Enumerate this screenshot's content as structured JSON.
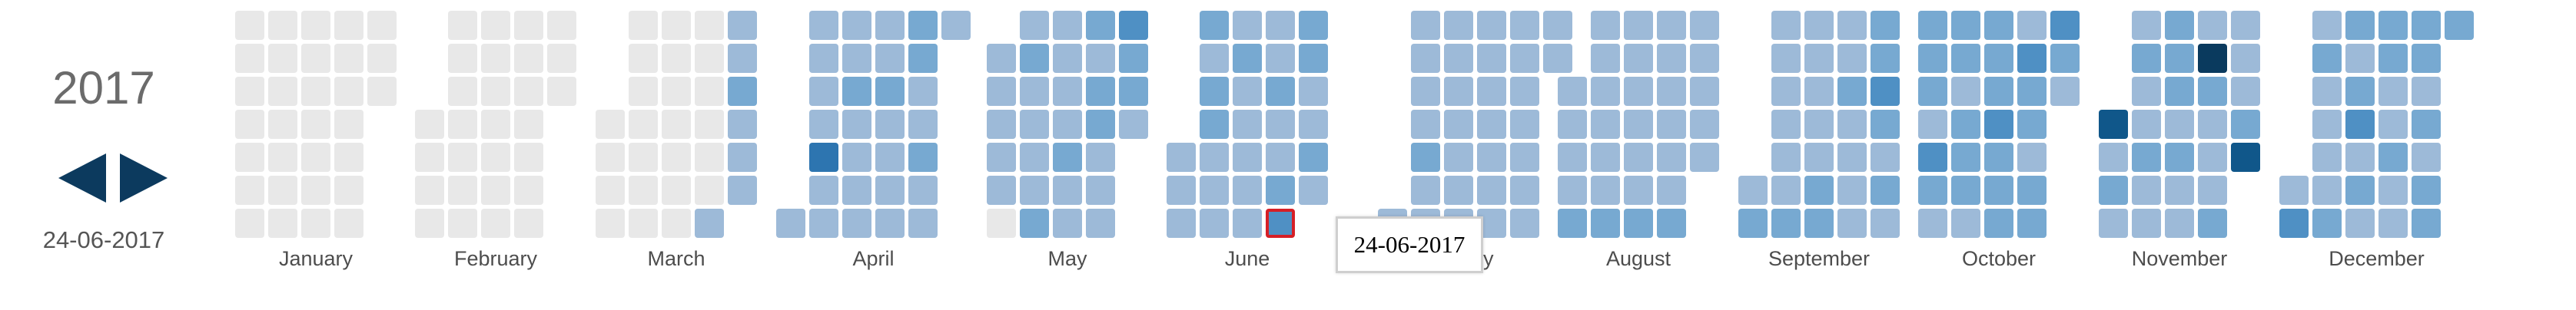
{
  "header": {
    "year": "2017",
    "selected_date": "24-06-2017"
  },
  "nav": {
    "prev_icon": "triangle-left-icon",
    "next_icon": "triangle-right-icon"
  },
  "tooltip": {
    "text": "24-06-2017"
  },
  "palette": {
    "empty": "#e8e8e8",
    "levels": [
      "#9dbad8",
      "#77a9d1",
      "#4f90c4",
      "#2d75b0",
      "#10578a",
      "#0a3a5e"
    ],
    "selected_border": "#d61f26"
  },
  "months": [
    {
      "name": "January",
      "first_dow": 0,
      "days": 31,
      "counts": []
    },
    {
      "name": "February",
      "first_dow": 3,
      "days": 28,
      "counts": []
    },
    {
      "name": "March",
      "first_dow": 3,
      "days": 31,
      "counts": [
        0,
        0,
        0,
        0,
        0,
        0,
        0,
        0,
        0,
        0,
        0,
        0,
        0,
        0,
        0,
        0,
        0,
        0,
        0,
        0,
        0,
        0,
        0,
        0,
        1,
        1,
        1,
        2,
        1,
        1,
        1
      ]
    },
    {
      "name": "April",
      "first_dow": 6,
      "days": 30,
      "counts": [
        1,
        1,
        1,
        1,
        1,
        4,
        1,
        1,
        1,
        1,
        2,
        1,
        1,
        1,
        1,
        1,
        1,
        2,
        1,
        1,
        1,
        1,
        2,
        2,
        1,
        1,
        2,
        1,
        1,
        1
      ]
    },
    {
      "name": "May",
      "first_dow": 1,
      "days": 31,
      "counts": [
        1,
        1,
        1,
        1,
        1,
        0,
        1,
        2,
        1,
        1,
        1,
        1,
        2,
        1,
        1,
        1,
        1,
        2,
        1,
        1,
        2,
        1,
        2,
        2,
        1,
        1,
        1,
        3,
        2,
        2,
        1
      ]
    },
    {
      "name": "June",
      "first_dow": 4,
      "days": 30,
      "counts": [
        1,
        1,
        1,
        2,
        1,
        2,
        2,
        1,
        1,
        1,
        1,
        2,
        1,
        1,
        1,
        1,
        1,
        1,
        1,
        2,
        1,
        1,
        2,
        3,
        2,
        2,
        1,
        1,
        2,
        1
      ]
    },
    {
      "name": "July",
      "first_dow": 6,
      "days": 31,
      "counts": [
        1,
        1,
        1,
        1,
        1,
        2,
        1,
        1,
        1,
        1,
        1,
        1,
        1,
        1,
        1,
        1,
        1,
        1,
        1,
        1,
        1,
        1,
        1,
        1,
        1,
        1,
        1,
        1,
        1,
        1,
        1
      ]
    },
    {
      "name": "August",
      "first_dow": 2,
      "days": 31,
      "counts": [
        1,
        1,
        1,
        1,
        2,
        1,
        1,
        1,
        1,
        1,
        1,
        2,
        1,
        1,
        1,
        1,
        1,
        1,
        2,
        1,
        1,
        1,
        1,
        1,
        1,
        2,
        1,
        1,
        1,
        1,
        1
      ]
    },
    {
      "name": "September",
      "first_dow": 5,
      "days": 30,
      "counts": [
        1,
        2,
        1,
        1,
        1,
        1,
        1,
        1,
        2,
        1,
        1,
        1,
        1,
        1,
        2,
        2,
        1,
        1,
        2,
        1,
        1,
        1,
        1,
        2,
        2,
        3,
        2,
        1,
        2,
        1
      ]
    },
    {
      "name": "October",
      "first_dow": 0,
      "days": 31,
      "counts": [
        2,
        2,
        2,
        1,
        3,
        2,
        1,
        2,
        2,
        1,
        2,
        2,
        2,
        1,
        2,
        2,
        2,
        3,
        2,
        2,
        2,
        1,
        3,
        2,
        2,
        1,
        2,
        2,
        3,
        2,
        1
      ]
    },
    {
      "name": "November",
      "first_dow": 3,
      "days": 30,
      "counts": [
        5,
        1,
        2,
        1,
        1,
        2,
        1,
        1,
        2,
        1,
        1,
        2,
        2,
        2,
        1,
        2,
        1,
        1,
        1,
        6,
        2,
        1,
        1,
        1,
        2,
        1,
        1,
        1,
        2,
        5
      ]
    },
    {
      "name": "December",
      "first_dow": 5,
      "days": 31,
      "counts": [
        1,
        3,
        1,
        2,
        1,
        1,
        1,
        1,
        2,
        2,
        1,
        2,
        3,
        1,
        2,
        1,
        2,
        2,
        1,
        1,
        2,
        1,
        1,
        2,
        2,
        1,
        2,
        1,
        2,
        2,
        2
      ]
    }
  ]
}
